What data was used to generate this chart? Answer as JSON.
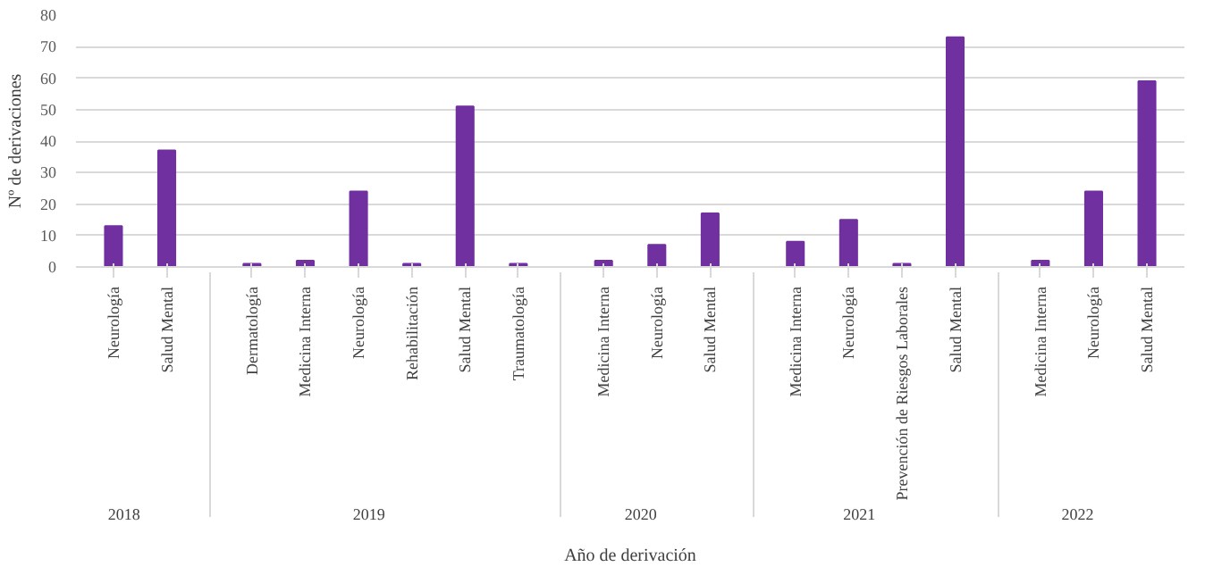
{
  "chart_data": {
    "type": "bar",
    "xlabel": "Año de derivación",
    "ylabel": "Nº de derivaciones",
    "categories": [
      "Neurología",
      "Salud Mental",
      "Dermatología",
      "Medicina Interna",
      "Neurología",
      "Rehabilitación",
      "Salud Mental",
      "Traumatología",
      "Medicina Interna",
      "Neurología",
      "Salud Mental",
      "Medicina Interna",
      "Neurología",
      "Prevención de Riesgos Laborales",
      "Salud Mental",
      "Medicina Interna",
      "Neurología",
      "Salud Mental"
    ],
    "values": [
      13,
      37,
      1,
      2,
      24,
      1,
      51,
      1,
      2,
      7,
      17,
      8,
      15,
      1,
      73,
      2,
      24,
      59
    ],
    "color": "#7030a0",
    "annotations": [
      "2018",
      "2019",
      "2020",
      "2021",
      "2022"
    ],
    "ylim": [
      0,
      80
    ],
    "yticks": [
      0,
      10,
      20,
      30,
      40,
      50,
      60,
      70,
      80
    ],
    "grid": "y"
  }
}
